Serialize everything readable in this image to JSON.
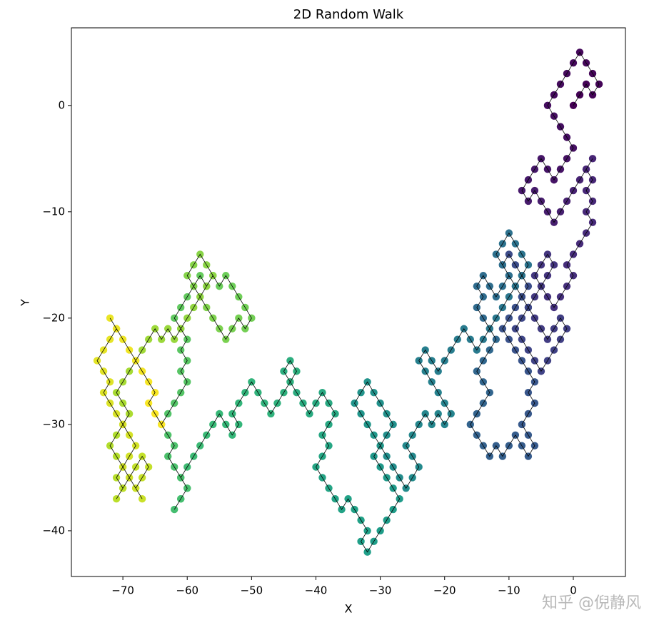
{
  "chart_data": {
    "type": "scatter",
    "title": "2D Random Walk",
    "xlabel": "X",
    "ylabel": "Y",
    "colormap": "viridis",
    "line_color": "#000000",
    "x": [
      0,
      1,
      2,
      3,
      4,
      3,
      2,
      1,
      0,
      -1,
      -2,
      -3,
      -4,
      -3,
      -2,
      -1,
      0,
      -1,
      -2,
      -3,
      -4,
      -5,
      -6,
      -7,
      -8,
      -7,
      -6,
      -5,
      -4,
      -3,
      -2,
      -1,
      0,
      1,
      2,
      3,
      2,
      3,
      2,
      3,
      2,
      3,
      2,
      1,
      0,
      -1,
      0,
      -1,
      -2,
      -3,
      -4,
      -5,
      -4,
      -3,
      -4,
      -5,
      -6,
      -5,
      -6,
      -7,
      -6,
      -5,
      -4,
      -3,
      -2,
      -1,
      -2,
      -3,
      -4,
      -5,
      -6,
      -7,
      -8,
      -9,
      -8,
      -7,
      -8,
      -9,
      -10,
      -11,
      -10,
      -9,
      -8,
      -7,
      -8,
      -9,
      -10,
      -11,
      -10,
      -9,
      -8,
      -7,
      -6,
      -7,
      -6,
      -7,
      -8,
      -7,
      -6,
      -7,
      -8,
      -9,
      -10,
      -11,
      -12,
      -13,
      -14,
      -15,
      -16,
      -15,
      -14,
      -13,
      -14,
      -15,
      -14,
      -13,
      -12,
      -13,
      -14,
      -15,
      -14,
      -15,
      -14,
      -13,
      -12,
      -11,
      -10,
      -11,
      -12,
      -11,
      -10,
      -9,
      -8,
      -7,
      -8,
      -9,
      -10,
      -11,
      -12,
      -13,
      -14,
      -15,
      -16,
      -17,
      -18,
      -19,
      -20,
      -21,
      -22,
      -23,
      -24,
      -23,
      -22,
      -21,
      -20,
      -19,
      -20,
      -21,
      -22,
      -23,
      -24,
      -25,
      -26,
      -25,
      -24,
      -25,
      -26,
      -27,
      -28,
      -29,
      -30,
      -29,
      -28,
      -29,
      -30,
      -31,
      -32,
      -33,
      -34,
      -33,
      -32,
      -31,
      -30,
      -31,
      -30,
      -29,
      -28,
      -27,
      -28,
      -29,
      -30,
      -31,
      -32,
      -33,
      -32,
      -33,
      -34,
      -35,
      -36,
      -37,
      -38,
      -39,
      -40,
      -39,
      -38,
      -39,
      -38,
      -37,
      -38,
      -39,
      -40,
      -41,
      -42,
      -43,
      -44,
      -45,
      -44,
      -43,
      -44,
      -45,
      -46,
      -47,
      -48,
      -49,
      -50,
      -51,
      -52,
      -53,
      -52,
      -53,
      -54,
      -55,
      -56,
      -57,
      -58,
      -59,
      -60,
      -61,
      -60,
      -61,
      -62,
      -61,
      -60,
      -61,
      -62,
      -63,
      -62,
      -63,
      -64,
      -63,
      -62,
      -61,
      -60,
      -61,
      -60,
      -61,
      -60,
      -61,
      -62,
      -61,
      -60,
      -59,
      -58,
      -57,
      -56,
      -55,
      -54,
      -53,
      -52,
      -51,
      -50,
      -51,
      -52,
      -53,
      -54,
      -55,
      -56,
      -57,
      -58,
      -59,
      -60,
      -59,
      -58,
      -57,
      -56,
      -57,
      -58,
      -59,
      -60,
      -61,
      -62,
      -63,
      -64,
      -65,
      -66,
      -67,
      -68,
      -69,
      -70,
      -71,
      -70,
      -69,
      -70,
      -71,
      -72,
      -71,
      -70,
      -71,
      -70,
      -71,
      -70,
      -69,
      -68,
      -67,
      -66,
      -67,
      -68,
      -67,
      -68,
      -69,
      -70,
      -69,
      -68,
      -69,
      -70,
      -71,
      -72,
      -73,
      -72,
      -73,
      -74,
      -73,
      -72,
      -71,
      -72,
      -71,
      -70,
      -69,
      -68,
      -67,
      -66,
      -65,
      -66,
      -65,
      -64
    ],
    "values": [
      0,
      1,
      2,
      1,
      2,
      3,
      4,
      5,
      4,
      3,
      2,
      1,
      0,
      -1,
      -2,
      -3,
      -4,
      -5,
      -6,
      -7,
      -6,
      -5,
      -6,
      -7,
      -8,
      -9,
      -8,
      -9,
      -10,
      -11,
      -10,
      -9,
      -8,
      -7,
      -6,
      -5,
      -6,
      -7,
      -8,
      -9,
      -10,
      -11,
      -12,
      -13,
      -14,
      -15,
      -16,
      -17,
      -18,
      -19,
      -18,
      -17,
      -16,
      -15,
      -14,
      -15,
      -16,
      -17,
      -18,
      -19,
      -20,
      -21,
      -22,
      -21,
      -20,
      -21,
      -22,
      -23,
      -24,
      -25,
      -24,
      -23,
      -22,
      -21,
      -20,
      -19,
      -18,
      -17,
      -16,
      -15,
      -14,
      -15,
      -16,
      -17,
      -18,
      -19,
      -20,
      -21,
      -22,
      -23,
      -24,
      -25,
      -26,
      -27,
      -28,
      -29,
      -30,
      -31,
      -32,
      -33,
      -32,
      -31,
      -32,
      -33,
      -32,
      -33,
      -32,
      -31,
      -30,
      -29,
      -28,
      -27,
      -26,
      -25,
      -24,
      -23,
      -22,
      -21,
      -20,
      -19,
      -18,
      -17,
      -16,
      -17,
      -18,
      -17,
      -16,
      -15,
      -14,
      -13,
      -12,
      -13,
      -14,
      -15,
      -16,
      -17,
      -18,
      -19,
      -20,
      -21,
      -22,
      -23,
      -22,
      -21,
      -22,
      -23,
      -24,
      -25,
      -24,
      -23,
      -24,
      -25,
      -26,
      -27,
      -28,
      -29,
      -30,
      -29,
      -30,
      -29,
      -30,
      -31,
      -32,
      -33,
      -34,
      -35,
      -36,
      -35,
      -34,
      -33,
      -32,
      -31,
      -30,
      -29,
      -28,
      -27,
      -26,
      -27,
      -28,
      -29,
      -30,
      -31,
      -32,
      -33,
      -34,
      -35,
      -36,
      -37,
      -38,
      -39,
      -40,
      -41,
      -42,
      -41,
      -40,
      -39,
      -38,
      -37,
      -38,
      -37,
      -36,
      -35,
      -34,
      -33,
      -32,
      -31,
      -30,
      -29,
      -28,
      -27,
      -28,
      -29,
      -28,
      -27,
      -26,
      -25,
      -24,
      -25,
      -26,
      -27,
      -28,
      -29,
      -28,
      -27,
      -26,
      -27,
      -28,
      -29,
      -30,
      -31,
      -30,
      -29,
      -30,
      -31,
      -32,
      -33,
      -34,
      -35,
      -36,
      -37,
      -38,
      -37,
      -36,
      -35,
      -34,
      -33,
      -32,
      -31,
      -30,
      -29,
      -28,
      -27,
      -26,
      -25,
      -24,
      -23,
      -22,
      -21,
      -20,
      -19,
      -18,
      -17,
      -16,
      -17,
      -16,
      -17,
      -16,
      -17,
      -18,
      -19,
      -20,
      -21,
      -20,
      -21,
      -22,
      -21,
      -20,
      -19,
      -18,
      -17,
      -16,
      -15,
      -14,
      -15,
      -16,
      -17,
      -18,
      -19,
      -20,
      -21,
      -22,
      -21,
      -22,
      -21,
      -22,
      -23,
      -24,
      -25,
      -26,
      -27,
      -28,
      -29,
      -30,
      -31,
      -32,
      -33,
      -34,
      -35,
      -36,
      -37,
      -36,
      -35,
      -34,
      -33,
      -34,
      -35,
      -36,
      -37,
      -36,
      -35,
      -34,
      -33,
      -32,
      -31,
      -30,
      -29,
      -28,
      -27,
      -26,
      -25,
      -24,
      -23,
      -22,
      -21,
      -20,
      -21,
      -22,
      -23,
      -24,
      -25,
      -26,
      -27,
      -28,
      -29,
      -30
    ],
    "xlim": [
      -78,
      8.1
    ],
    "ylim": [
      -44.3,
      7.3
    ],
    "xticks": [
      {
        "value": -70,
        "label": "−70"
      },
      {
        "value": -60,
        "label": "−60"
      },
      {
        "value": -50,
        "label": "−50"
      },
      {
        "value": -40,
        "label": "−40"
      },
      {
        "value": -30,
        "label": "−30"
      },
      {
        "value": -20,
        "label": "−20"
      },
      {
        "value": -10,
        "label": "−10"
      },
      0
    ],
    "yticks": [
      0,
      {
        "value": -10,
        "label": "−10"
      },
      {
        "value": -20,
        "label": "−20"
      },
      {
        "value": -30,
        "label": "−30"
      },
      {
        "value": -40,
        "label": "−40"
      }
    ]
  },
  "watermark": "知乎 @倪静风"
}
